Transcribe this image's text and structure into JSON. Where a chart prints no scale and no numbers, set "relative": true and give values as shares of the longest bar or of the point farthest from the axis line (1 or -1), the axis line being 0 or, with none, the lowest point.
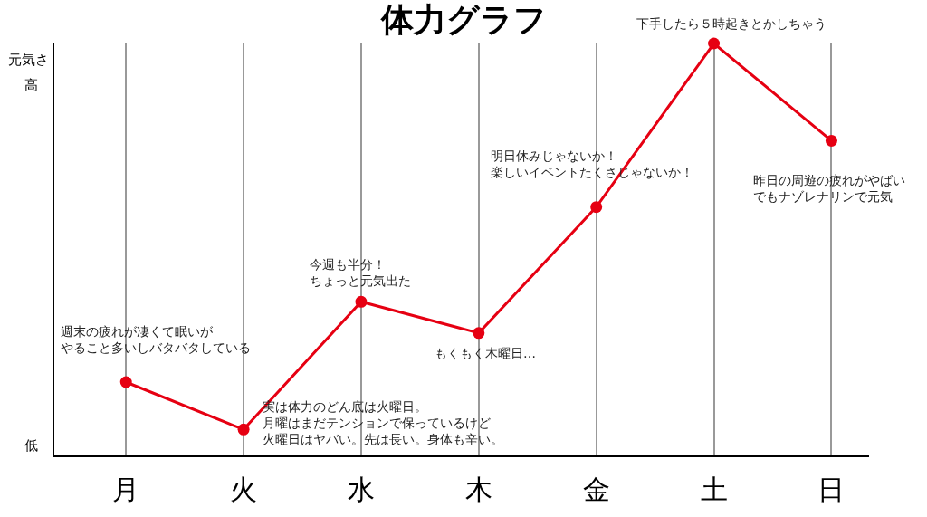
{
  "chart_data": {
    "type": "line",
    "title": "体力グラフ",
    "ylabel": "元気さ",
    "categories": [
      "月",
      "火",
      "水",
      "木",
      "金",
      "土",
      "日"
    ],
    "relative": true,
    "series": [
      {
        "color": "#e60012",
        "values": [
          0.178,
          0.063,
          0.373,
          0.297,
          0.603,
          1,
          0.764
        ]
      }
    ],
    "marker": "circle",
    "line_style": "solid",
    "grid": "x",
    "annotations": [
      {
        "text": "週末の疲れが凄くて眠いがやること多いしバタバタしている",
        "x": "月",
        "y": 0.178
      },
      {
        "text": "実は体力のどん底は火曜日。月曜はまだテンションで保っているけど火曜日はヤバい。先は長い。身体も辛い。",
        "x": "火",
        "y": 0.063
      },
      {
        "text": "今週も半分！ちょっと元気出た",
        "x": "水",
        "y": 0.373
      },
      {
        "text": "もくもく木曜日…",
        "x": "木",
        "y": 0.297
      },
      {
        "text": "明日休みじゃないか！楽しいイベントたくさじゃないか！",
        "x": "金",
        "y": 0.603
      },
      {
        "text": "下手したら５時起きとかしちゃう",
        "x": "土",
        "y": 1
      },
      {
        "text": "昨日の周遊の疲れがやばいでもナゾレナリンで元気",
        "x": "日",
        "y": 0.764
      },
      "高",
      "低"
    ]
  }
}
